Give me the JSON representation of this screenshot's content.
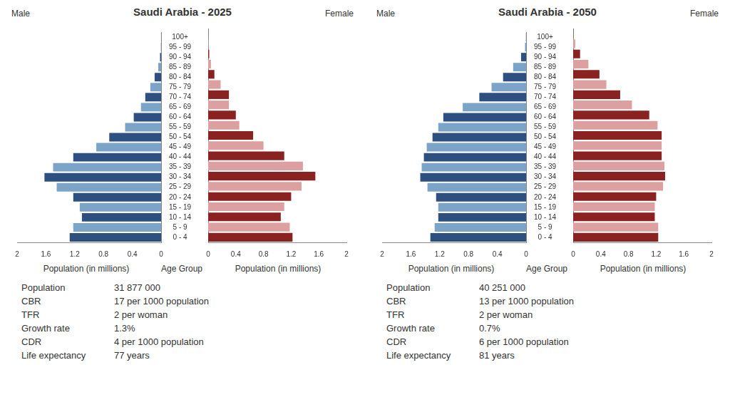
{
  "chart_data": [
    {
      "type": "bar",
      "orientation": "horizontal",
      "title": "Saudi Arabia - 2025",
      "xlabel": "Population (in millions)",
      "ylabel": "Age Group",
      "categories": [
        "0 - 4",
        "5 - 9",
        "10 - 14",
        "15 - 19",
        "20 - 24",
        "25 - 29",
        "30 - 34",
        "35 - 39",
        "40 - 44",
        "45 - 49",
        "50 - 54",
        "55 - 59",
        "60 - 64",
        "65 - 69",
        "70 - 74",
        "75 - 79",
        "80 - 84",
        "85 - 89",
        "90 - 94",
        "95 - 99",
        "100+"
      ],
      "series": [
        {
          "name": "Male",
          "colors": [
            "#2d5080",
            "#7ca3c8",
            "#2d5080",
            "#7ca3c8",
            "#2d5080",
            "#7ca3c8",
            "#2d5080",
            "#7ca3c8",
            "#2d5080",
            "#7ca3c8",
            "#2d5080",
            "#7ca3c8",
            "#2d5080",
            "#7ca3c8",
            "#2d5080",
            "#7ca3c8",
            "#2d5080",
            "#7ca3c8",
            "#2d5080",
            "#7ca3c8",
            "#2d5080"
          ],
          "values": [
            1.27,
            1.22,
            1.1,
            1.13,
            1.22,
            1.45,
            1.62,
            1.5,
            1.22,
            0.9,
            0.72,
            0.5,
            0.38,
            0.28,
            0.22,
            0.15,
            0.09,
            0.04,
            0.015,
            0.004,
            0.001
          ]
        },
        {
          "name": "Female",
          "colors": [
            "#8b2222",
            "#dda0a0",
            "#8b2222",
            "#dda0a0",
            "#8b2222",
            "#dda0a0",
            "#8b2222",
            "#dda0a0",
            "#8b2222",
            "#dda0a0",
            "#8b2222",
            "#dda0a0",
            "#8b2222",
            "#dda0a0",
            "#8b2222",
            "#dda0a0",
            "#8b2222",
            "#dda0a0",
            "#8b2222",
            "#dda0a0",
            "#8b2222"
          ],
          "values": [
            1.22,
            1.18,
            1.05,
            1.1,
            1.2,
            1.35,
            1.55,
            1.37,
            1.1,
            0.8,
            0.65,
            0.45,
            0.4,
            0.3,
            0.3,
            0.18,
            0.09,
            0.04,
            0.015,
            0.004,
            0.001
          ]
        }
      ],
      "xlim": [
        0,
        2.0
      ],
      "xticks": [
        0,
        0.4,
        0.8,
        1.2,
        1.6,
        2
      ],
      "grid": false,
      "annotations": [
        {
          "label": "Population",
          "text": "31 877 000"
        },
        {
          "label": "CBR",
          "text": "17 per 1000 population"
        },
        {
          "label": "TFR",
          "text": "2 per woman"
        },
        {
          "label": "Growth rate",
          "text": "1.3%"
        },
        {
          "label": "CDR",
          "text": "4 per 1000 population"
        },
        {
          "label": "Life expectancy",
          "text": "77 years"
        }
      ]
    },
    {
      "type": "bar",
      "orientation": "horizontal",
      "title": "Saudi Arabia - 2050",
      "xlabel": "Population (in millions)",
      "ylabel": "Age Group",
      "categories": [
        "0 - 4",
        "5 - 9",
        "10 - 14",
        "15 - 19",
        "20 - 24",
        "25 - 29",
        "30 - 34",
        "35 - 39",
        "40 - 44",
        "45 - 49",
        "50 - 54",
        "55 - 59",
        "60 - 64",
        "65 - 69",
        "70 - 74",
        "75 - 79",
        "80 - 84",
        "85 - 89",
        "90 - 94",
        "95 - 99",
        "100+"
      ],
      "series": [
        {
          "name": "Male",
          "colors": [
            "#2d5080",
            "#7ca3c8",
            "#2d5080",
            "#7ca3c8",
            "#2d5080",
            "#7ca3c8",
            "#2d5080",
            "#7ca3c8",
            "#2d5080",
            "#7ca3c8",
            "#2d5080",
            "#7ca3c8",
            "#2d5080",
            "#7ca3c8",
            "#2d5080",
            "#7ca3c8",
            "#2d5080",
            "#7ca3c8",
            "#2d5080",
            "#7ca3c8",
            "#2d5080"
          ],
          "values": [
            1.33,
            1.27,
            1.22,
            1.22,
            1.25,
            1.37,
            1.47,
            1.45,
            1.42,
            1.38,
            1.3,
            1.22,
            1.15,
            0.88,
            0.65,
            0.48,
            0.32,
            0.18,
            0.07,
            0.015,
            0.002
          ]
        },
        {
          "name": "Female",
          "colors": [
            "#8b2222",
            "#dda0a0",
            "#8b2222",
            "#dda0a0",
            "#8b2222",
            "#dda0a0",
            "#8b2222",
            "#dda0a0",
            "#8b2222",
            "#dda0a0",
            "#8b2222",
            "#dda0a0",
            "#8b2222",
            "#dda0a0",
            "#8b2222",
            "#dda0a0",
            "#8b2222",
            "#dda0a0",
            "#8b2222",
            "#dda0a0",
            "#8b2222"
          ],
          "values": [
            1.23,
            1.23,
            1.18,
            1.18,
            1.2,
            1.3,
            1.33,
            1.32,
            1.28,
            1.28,
            1.28,
            1.22,
            1.1,
            0.85,
            0.68,
            0.48,
            0.38,
            0.22,
            0.1,
            0.03,
            0.003
          ]
        }
      ],
      "xlim": [
        0,
        2.0
      ],
      "xticks": [
        0,
        0.4,
        0.8,
        1.2,
        1.6,
        2
      ],
      "grid": false,
      "annotations": [
        {
          "label": "Population",
          "text": "40 251 000"
        },
        {
          "label": "CBR",
          "text": "13 per 1000 population"
        },
        {
          "label": "TFR",
          "text": "2 per woman"
        },
        {
          "label": "Growth rate",
          "text": "0.7%"
        },
        {
          "label": "CDR",
          "text": "6 per 1000 population"
        },
        {
          "label": "Life expectancy",
          "text": "81 years"
        }
      ]
    }
  ]
}
